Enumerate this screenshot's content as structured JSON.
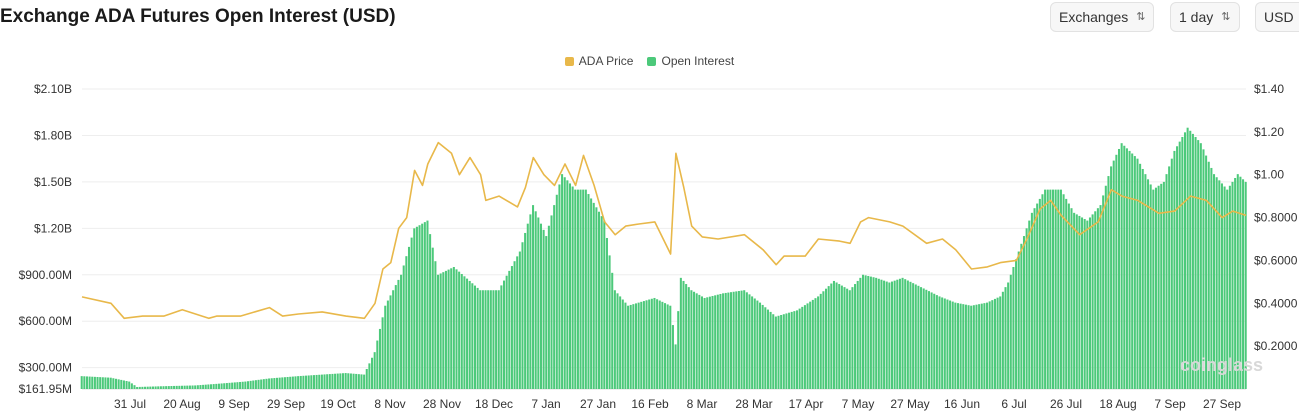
{
  "header": {
    "title": "Exchange ADA Futures Open Interest (USD)",
    "exchanges_label": "Exchanges",
    "interval_label": "1 day",
    "currency_label": "USD"
  },
  "watermark": "coinglass",
  "colors": {
    "price": "#e8b84a",
    "open_interest": "#4cc97a",
    "grid": "#eeeeee"
  },
  "chart_data": {
    "type": "bar+line",
    "legend": [
      "ADA Price",
      "Open Interest"
    ],
    "legend_position": "top-center",
    "grid": true,
    "x_tick_labels": [
      "31 Jul",
      "20 Aug",
      "9 Sep",
      "29 Sep",
      "19 Oct",
      "8 Nov",
      "28 Nov",
      "18 Dec",
      "7 Jan",
      "27 Jan",
      "16 Feb",
      "8 Mar",
      "28 Mar",
      "17 Apr",
      "7 May",
      "27 May",
      "16 Jun",
      "6 Jul",
      "26 Jul",
      "18 Aug",
      "7 Sep",
      "27 Sep"
    ],
    "y_left": {
      "tick_labels": [
        "$161.95M",
        "$300.00M",
        "$600.00M",
        "$900.00M",
        "$1.20B",
        "$1.50B",
        "$1.80B",
        "$2.10B"
      ],
      "tick_values": [
        161.95,
        300,
        600,
        900,
        1200,
        1500,
        1800,
        2100
      ],
      "range": [
        161.95,
        2100
      ],
      "unit": "M USD"
    },
    "y_right": {
      "tick_labels": [
        "$0.2000",
        "$0.4000",
        "$0.6000",
        "$0.8000",
        "$1.00",
        "$1.20",
        "$1.40"
      ],
      "tick_values": [
        0.2,
        0.4,
        0.6,
        0.8,
        1.0,
        1.2,
        1.4
      ],
      "range": [
        0.0,
        1.4
      ],
      "unit": "USD"
    },
    "series": [
      {
        "name": "Open Interest",
        "kind": "bar",
        "axis": "left",
        "points": [
          [
            "2024-07-20",
            245
          ],
          [
            "2024-07-31",
            235
          ],
          [
            "2024-08-07",
            210
          ],
          [
            "2024-08-10",
            175
          ],
          [
            "2024-08-20",
            180
          ],
          [
            "2024-09-01",
            185
          ],
          [
            "2024-09-09",
            195
          ],
          [
            "2024-09-20",
            210
          ],
          [
            "2024-09-29",
            230
          ],
          [
            "2024-10-10",
            245
          ],
          [
            "2024-10-19",
            255
          ],
          [
            "2024-10-28",
            265
          ],
          [
            "2024-11-04",
            255
          ],
          [
            "2024-11-08",
            400
          ],
          [
            "2024-11-12",
            700
          ],
          [
            "2024-11-18",
            900
          ],
          [
            "2024-11-23",
            1200
          ],
          [
            "2024-11-28",
            1250
          ],
          [
            "2024-12-02",
            900
          ],
          [
            "2024-12-08",
            950
          ],
          [
            "2024-12-18",
            800
          ],
          [
            "2024-12-25",
            800
          ],
          [
            "2025-01-02",
            1050
          ],
          [
            "2025-01-07",
            1350
          ],
          [
            "2025-01-12",
            1150
          ],
          [
            "2025-01-18",
            1550
          ],
          [
            "2025-01-23",
            1450
          ],
          [
            "2025-01-27",
            1450
          ],
          [
            "2025-02-03",
            1250
          ],
          [
            "2025-02-07",
            800
          ],
          [
            "2025-02-12",
            700
          ],
          [
            "2025-02-16",
            720
          ],
          [
            "2025-02-22",
            750
          ],
          [
            "2025-02-28",
            700
          ],
          [
            "2025-03-02",
            450
          ],
          [
            "2025-03-04",
            880
          ],
          [
            "2025-03-08",
            800
          ],
          [
            "2025-03-13",
            750
          ],
          [
            "2025-03-20",
            780
          ],
          [
            "2025-03-28",
            800
          ],
          [
            "2025-04-03",
            720
          ],
          [
            "2025-04-09",
            630
          ],
          [
            "2025-04-17",
            670
          ],
          [
            "2025-04-25",
            760
          ],
          [
            "2025-05-01",
            860
          ],
          [
            "2025-05-07",
            800
          ],
          [
            "2025-05-12",
            900
          ],
          [
            "2025-05-17",
            880
          ],
          [
            "2025-05-22",
            850
          ],
          [
            "2025-05-27",
            880
          ],
          [
            "2025-06-03",
            820
          ],
          [
            "2025-06-10",
            760
          ],
          [
            "2025-06-16",
            720
          ],
          [
            "2025-06-22",
            700
          ],
          [
            "2025-06-28",
            720
          ],
          [
            "2025-07-03",
            760
          ],
          [
            "2025-07-06",
            850
          ],
          [
            "2025-07-10",
            1050
          ],
          [
            "2025-07-15",
            1300
          ],
          [
            "2025-07-20",
            1450
          ],
          [
            "2025-07-26",
            1450
          ],
          [
            "2025-07-31",
            1300
          ],
          [
            "2025-08-05",
            1250
          ],
          [
            "2025-08-10",
            1350
          ],
          [
            "2025-08-14",
            1600
          ],
          [
            "2025-08-18",
            1750
          ],
          [
            "2025-08-24",
            1650
          ],
          [
            "2025-08-30",
            1450
          ],
          [
            "2025-09-03",
            1500
          ],
          [
            "2025-09-07",
            1700
          ],
          [
            "2025-09-12",
            1850
          ],
          [
            "2025-09-17",
            1750
          ],
          [
            "2025-09-22",
            1550
          ],
          [
            "2025-09-27",
            1450
          ],
          [
            "2025-10-01",
            1550
          ],
          [
            "2025-10-04",
            1500
          ]
        ]
      },
      {
        "name": "ADA Price",
        "kind": "line",
        "axis": "right",
        "points": [
          [
            "2024-07-20",
            0.43
          ],
          [
            "2024-07-31",
            0.4
          ],
          [
            "2024-08-05",
            0.33
          ],
          [
            "2024-08-12",
            0.34
          ],
          [
            "2024-08-20",
            0.34
          ],
          [
            "2024-08-27",
            0.37
          ],
          [
            "2024-09-06",
            0.33
          ],
          [
            "2024-09-09",
            0.34
          ],
          [
            "2024-09-18",
            0.34
          ],
          [
            "2024-09-29",
            0.38
          ],
          [
            "2024-10-04",
            0.34
          ],
          [
            "2024-10-10",
            0.35
          ],
          [
            "2024-10-19",
            0.36
          ],
          [
            "2024-10-28",
            0.34
          ],
          [
            "2024-11-04",
            0.33
          ],
          [
            "2024-11-08",
            0.4
          ],
          [
            "2024-11-11",
            0.56
          ],
          [
            "2024-11-14",
            0.59
          ],
          [
            "2024-11-17",
            0.75
          ],
          [
            "2024-11-20",
            0.8
          ],
          [
            "2024-11-23",
            1.02
          ],
          [
            "2024-11-26",
            0.95
          ],
          [
            "2024-11-28",
            1.05
          ],
          [
            "2024-12-02",
            1.15
          ],
          [
            "2024-12-07",
            1.1
          ],
          [
            "2024-12-10",
            1.0
          ],
          [
            "2024-12-14",
            1.08
          ],
          [
            "2024-12-18",
            1.0
          ],
          [
            "2024-12-20",
            0.88
          ],
          [
            "2024-12-25",
            0.9
          ],
          [
            "2025-01-01",
            0.85
          ],
          [
            "2025-01-04",
            0.94
          ],
          [
            "2025-01-07",
            1.08
          ],
          [
            "2025-01-11",
            1.0
          ],
          [
            "2025-01-15",
            0.95
          ],
          [
            "2025-01-19",
            1.05
          ],
          [
            "2025-01-23",
            0.95
          ],
          [
            "2025-01-26",
            1.09
          ],
          [
            "2025-01-30",
            0.95
          ],
          [
            "2025-02-03",
            0.78
          ],
          [
            "2025-02-07",
            0.72
          ],
          [
            "2025-02-11",
            0.76
          ],
          [
            "2025-02-16",
            0.77
          ],
          [
            "2025-02-22",
            0.78
          ],
          [
            "2025-02-28",
            0.63
          ],
          [
            "2025-03-02",
            1.1
          ],
          [
            "2025-03-05",
            0.94
          ],
          [
            "2025-03-08",
            0.76
          ],
          [
            "2025-03-12",
            0.71
          ],
          [
            "2025-03-18",
            0.7
          ],
          [
            "2025-03-28",
            0.72
          ],
          [
            "2025-04-04",
            0.65
          ],
          [
            "2025-04-09",
            0.58
          ],
          [
            "2025-04-12",
            0.62
          ],
          [
            "2025-04-20",
            0.62
          ],
          [
            "2025-04-25",
            0.7
          ],
          [
            "2025-05-03",
            0.69
          ],
          [
            "2025-05-07",
            0.68
          ],
          [
            "2025-05-11",
            0.78
          ],
          [
            "2025-05-14",
            0.8
          ],
          [
            "2025-05-22",
            0.78
          ],
          [
            "2025-05-27",
            0.76
          ],
          [
            "2025-06-05",
            0.68
          ],
          [
            "2025-06-11",
            0.7
          ],
          [
            "2025-06-16",
            0.65
          ],
          [
            "2025-06-22",
            0.56
          ],
          [
            "2025-06-28",
            0.57
          ],
          [
            "2025-07-03",
            0.59
          ],
          [
            "2025-07-09",
            0.6
          ],
          [
            "2025-07-13",
            0.7
          ],
          [
            "2025-07-18",
            0.84
          ],
          [
            "2025-07-22",
            0.88
          ],
          [
            "2025-07-26",
            0.81
          ],
          [
            "2025-08-02",
            0.72
          ],
          [
            "2025-08-09",
            0.78
          ],
          [
            "2025-08-14",
            0.93
          ],
          [
            "2025-08-18",
            0.9
          ],
          [
            "2025-08-24",
            0.88
          ],
          [
            "2025-09-01",
            0.82
          ],
          [
            "2025-09-07",
            0.83
          ],
          [
            "2025-09-13",
            0.9
          ],
          [
            "2025-09-19",
            0.88
          ],
          [
            "2025-09-25",
            0.8
          ],
          [
            "2025-09-29",
            0.83
          ],
          [
            "2025-10-04",
            0.81
          ]
        ]
      }
    ]
  }
}
